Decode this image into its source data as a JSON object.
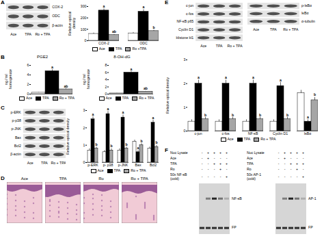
{
  "chart_data": [
    {
      "type": "bar",
      "ylabel": "Relative optical density",
      "categories": [
        "COX-2",
        "ODC"
      ],
      "ylim": [
        0,
        300
      ],
      "yticks": [
        0,
        100,
        200,
        300
      ],
      "legend": "bottom",
      "series": [
        {
          "name": "Ace",
          "color": "#ffffff",
          "values": [
            60,
            65
          ],
          "errors": [
            8,
            8
          ]
        },
        {
          "name": "TPA",
          "color": "#000000",
          "values": [
            265,
            255
          ],
          "errors": [
            15,
            18
          ],
          "letters": [
            "a",
            "a"
          ]
        },
        {
          "name": "Ro +TPA",
          "color": "#a6a6a6",
          "values": [
            50,
            85
          ],
          "errors": [
            6,
            8
          ],
          "letters": [
            "ab",
            "b"
          ]
        }
      ]
    },
    {
      "type": "bar",
      "title": "PGE2",
      "ylabel": "ng / ml homogenate",
      "categories": [
        null
      ],
      "ylim": [
        0,
        6
      ],
      "yticks": [
        0,
        2,
        4,
        6
      ],
      "legend": "bottom",
      "series": [
        {
          "name": "Ace",
          "color": "#ffffff",
          "values": [
            0.3
          ],
          "errors": [
            0.05
          ]
        },
        {
          "name": "TPA",
          "color": "#000000",
          "values": [
            4.8
          ],
          "errors": [
            0.3
          ],
          "letters": [
            "a"
          ]
        },
        {
          "name": "Ro + TPA",
          "color": "#a6a6a6",
          "values": [
            1.0
          ],
          "errors": [
            0.15
          ],
          "letters": [
            "ab"
          ]
        }
      ]
    },
    {
      "type": "bar",
      "title": "8-OH-dG",
      "ylabel": "ng / ml homogenate",
      "categories": [
        null
      ],
      "ylim": [
        0,
        8
      ],
      "yticks": [
        0,
        2,
        4,
        6,
        8
      ],
      "legend": "bottom",
      "series": [
        {
          "name": "Ace",
          "color": "#ffffff",
          "values": [
            0.2
          ],
          "errors": [
            0.05
          ]
        },
        {
          "name": "TPA",
          "color": "#000000",
          "values": [
            6.0
          ],
          "errors": [
            0.3
          ],
          "letters": [
            "a"
          ]
        },
        {
          "name": "Ro + TPA",
          "color": "#a6a6a6",
          "values": [
            0.7
          ],
          "errors": [
            0.1
          ],
          "letters": [
            "ab"
          ]
        }
      ]
    },
    {
      "type": "bar",
      "ylabel": "Relative optical density",
      "categories": [
        "p-ERK",
        "p- p38",
        "p-JNK",
        "Bax",
        "Bcl2"
      ],
      "ylim": [
        0,
        3
      ],
      "yticks": [
        0,
        1,
        2,
        3
      ],
      "legend": "bottom",
      "series": [
        {
          "name": "Ace",
          "color": "#ffffff",
          "values": [
            0.7,
            0.6,
            0.7,
            1.2,
            0.8
          ],
          "errors": [
            0.1,
            0.1,
            0.1,
            0.1,
            0.1
          ]
        },
        {
          "name": "TPA",
          "color": "#000000",
          "values": [
            2.5,
            2.8,
            2.6,
            0.6,
            2.3
          ],
          "errors": [
            0.15,
            0.15,
            0.15,
            0.1,
            0.15
          ],
          "letters": [
            "a",
            "a",
            "a",
            "a",
            "a"
          ]
        },
        {
          "name": "Ro + TPA",
          "color": "#a6a6a6",
          "values": [
            0.8,
            0.7,
            0.8,
            1.0,
            0.9
          ],
          "errors": [
            0.1,
            0.1,
            0.1,
            0.1,
            0.1
          ],
          "letters": [
            "b",
            "b",
            "b",
            "b",
            "b"
          ]
        }
      ]
    },
    {
      "type": "bar",
      "ylabel": "Relative optical density",
      "categories": [
        "c-jun",
        "c-fos",
        "NF-κB",
        "Cyclin D1",
        "IκBα"
      ],
      "ylim": [
        0,
        3
      ],
      "yticks": [
        0,
        1,
        2,
        3
      ],
      "legend": "bottom",
      "series": [
        {
          "name": "Ace",
          "color": "#ffffff",
          "values": [
            0.4,
            0.4,
            0.4,
            0.4,
            1.6
          ],
          "errors": [
            0.08,
            0.08,
            0.08,
            0.08,
            0.12
          ]
        },
        {
          "name": "TPA",
          "color": "#000000",
          "values": [
            2.0,
            2.0,
            2.0,
            1.9,
            0.4
          ],
          "errors": [
            0.15,
            0.15,
            0.15,
            0.15,
            0.08
          ],
          "letters": [
            "a",
            "a",
            "a",
            "a",
            "a"
          ]
        },
        {
          "name": "Ro + TPA",
          "color": "#a6a6a6",
          "values": [
            0.5,
            0.5,
            0.5,
            0.5,
            1.3
          ],
          "errors": [
            0.08,
            0.08,
            0.08,
            0.08,
            0.12
          ],
          "letters": [
            "b",
            "b",
            "b",
            "b",
            "b"
          ]
        }
      ]
    }
  ],
  "figure": {
    "panels": [
      {
        "letter": "A",
        "blot": {
          "bands": [
            "COX-2",
            "ODC",
            "β-actin"
          ],
          "lanes": [
            "Ace",
            "TPA",
            "Ro + TPA"
          ]
        }
      },
      {
        "letter": "B"
      },
      {
        "letter": "C",
        "blot": {
          "bands": [
            "p-ERK",
            "p-p38",
            "p-JNK",
            "Bax",
            "Bcl2",
            "β-actin"
          ],
          "lanes": [
            "Ace",
            "TPA",
            "Ro + TPA"
          ]
        }
      },
      {
        "letter": "D",
        "images": [
          "Ace",
          "TPA",
          "Ro",
          "Ro + TPA"
        ]
      },
      {
        "letter": "E",
        "blots": [
          {
            "bands": [
              "c-jun",
              "c-fos",
              "NF-κB p65",
              "Cyclin D1",
              "Histone H1"
            ],
            "lanes": [
              "Ace",
              "TPA",
              "Ro + TPA"
            ]
          },
          {
            "bands": [
              "p-IκBα",
              "IκBα",
              "α-tubulin"
            ],
            "lanes": [
              "Ace",
              "TPA",
              "Ro + TPA"
            ]
          }
        ]
      },
      {
        "letter": "F",
        "gels": [
          {
            "rows": [
              {
                "label": "Nuc Lysate",
                "marks": [
                  "-",
                  "+",
                  "+",
                  "+",
                  "+"
                ]
              },
              {
                "label": "Ace",
                "marks": [
                  "-",
                  "+",
                  "-",
                  "-",
                  "-"
                ]
              },
              {
                "label": "TPA",
                "marks": [
                  "-",
                  "-",
                  "+",
                  "+",
                  "+"
                ]
              },
              {
                "label": "Ro",
                "marks": [
                  "-",
                  "-",
                  "-",
                  "+",
                  "-"
                ]
              },
              {
                "label": "50x NF-κB (cold)",
                "marks": [
                  "-",
                  "-",
                  "-",
                  "-",
                  "+"
                ]
              }
            ],
            "bands": [
              "NF-κB",
              "FP"
            ]
          },
          {
            "rows": [
              {
                "label": "Nuc Lysate",
                "marks": [
                  "-",
                  "+",
                  "+",
                  "+",
                  "+"
                ]
              },
              {
                "label": "Ace",
                "marks": [
                  "-",
                  "+",
                  "-",
                  "-",
                  "-"
                ]
              },
              {
                "label": "TPA",
                "marks": [
                  "-",
                  "-",
                  "+",
                  "+",
                  "+"
                ]
              },
              {
                "label": "Ro",
                "marks": [
                  "-",
                  "-",
                  "-",
                  "+",
                  "-"
                ]
              },
              {
                "label": "50x AP-1 (cold)",
                "marks": [
                  "-",
                  "-",
                  "-",
                  "-",
                  "+"
                ]
              }
            ],
            "bands": [
              "AP-1",
              "FP"
            ]
          }
        ]
      }
    ]
  }
}
